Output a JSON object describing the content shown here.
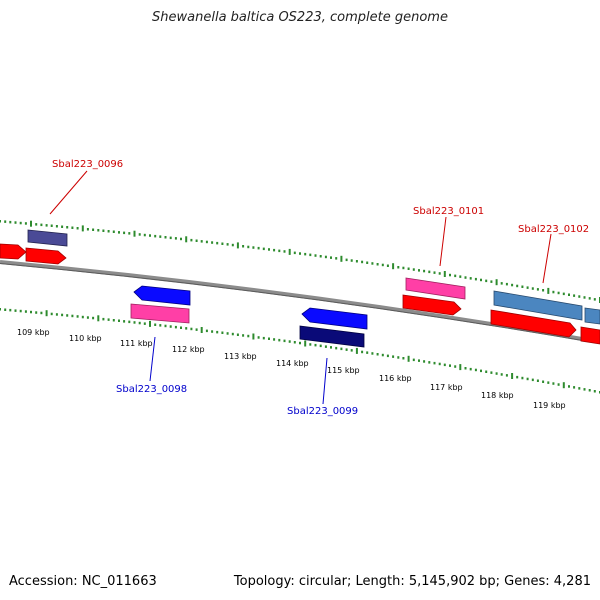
{
  "title": "Shewanella baltica OS223, complete genome",
  "footer": {
    "accession": "Accession: NC_011663",
    "summary": "Topology: circular; Length: 5,145,902 bp; Genes: 4,281"
  },
  "colors": {
    "backbone": "#7a7a7a",
    "tick": "#2e8b2e",
    "forward_label": "#cc0000",
    "reverse_label": "#0000cc",
    "cds_red": "#ff0000",
    "cds_blue": "#0a0aff",
    "cds_pink": "#ff3fa6",
    "cds_purple": "#4a4a96",
    "cds_navy": "#0a0a78",
    "cds_steel": "#4b86c0"
  },
  "ruler": {
    "labels": [
      "109 kbp",
      "110 kbp",
      "111 kbp",
      "112 kbp",
      "113 kbp",
      "114 kbp",
      "115 kbp",
      "116 kbp",
      "117 kbp",
      "118 kbp",
      "119 kbp"
    ]
  },
  "gene_labels": {
    "g0096": "Sbal223_0096",
    "g0098": "Sbal223_0098",
    "g0099": "Sbal223_0099",
    "g0101": "Sbal223_0101",
    "g0102": "Sbal223_0102"
  }
}
